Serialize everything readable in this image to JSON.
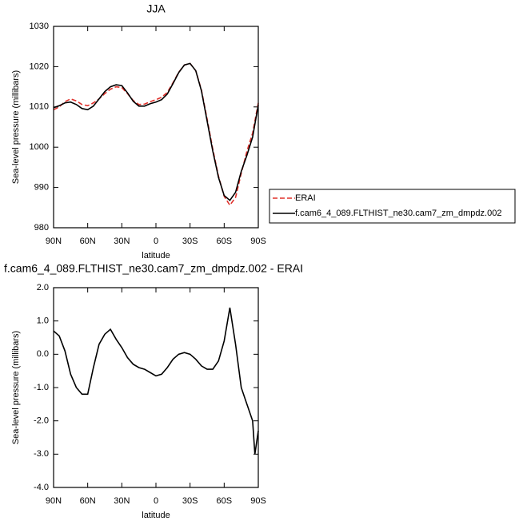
{
  "chart_data": [
    {
      "type": "line",
      "title": "JJA",
      "xlabel": "latitude",
      "ylabel": "Sea-level pressure (millibars)",
      "x": [
        90,
        85,
        80,
        75,
        70,
        65,
        60,
        55,
        50,
        45,
        40,
        35,
        30,
        25,
        20,
        15,
        10,
        5,
        0,
        -5,
        -10,
        -15,
        -20,
        -25,
        -30,
        -35,
        -40,
        -45,
        -50,
        -55,
        -60,
        -65,
        -70,
        -75,
        -80,
        -85,
        -90
      ],
      "xlim": [
        90,
        -90
      ],
      "xticks": [
        {
          "value": 90,
          "label": "90N"
        },
        {
          "value": 60,
          "label": "60N"
        },
        {
          "value": 30,
          "label": "30N"
        },
        0,
        {
          "value": -30,
          "label": "30S"
        },
        {
          "value": -60,
          "label": "60S"
        },
        {
          "value": -90,
          "label": "90S"
        }
      ],
      "ylim": [
        980,
        1030
      ],
      "yticks": [
        980,
        990,
        1000,
        1010,
        1020,
        1030
      ],
      "legend": "right",
      "series": [
        {
          "name": "ERAI",
          "color": "#e0302a",
          "linestyle": "dashed",
          "values": [
            1009.3,
            1010.0,
            1011.3,
            1012.0,
            1011.5,
            1010.6,
            1010.3,
            1011.0,
            1012.0,
            1013.3,
            1014.4,
            1015.0,
            1014.8,
            1013.3,
            1011.6,
            1010.6,
            1010.7,
            1011.3,
            1011.8,
            1012.4,
            1013.6,
            1016.0,
            1018.6,
            1020.4,
            1020.8,
            1019.0,
            1014.2,
            1007.0,
            999.5,
            992.8,
            987.8,
            985.6,
            987.5,
            993.5,
            999.0,
            1003.5,
            1011.0
          ]
        },
        {
          "name": "f.cam6_4_089.FLTHIST_ne30.cam7_zm_dmpdz.002",
          "color": "#000000",
          "linestyle": "solid",
          "values": [
            1009.8,
            1010.3,
            1011.0,
            1011.2,
            1010.6,
            1009.6,
            1009.3,
            1010.2,
            1012.0,
            1013.8,
            1015.0,
            1015.5,
            1015.3,
            1013.5,
            1011.4,
            1010.2,
            1010.2,
            1010.8,
            1011.2,
            1011.8,
            1013.2,
            1015.8,
            1018.5,
            1020.4,
            1020.8,
            1019.0,
            1014.0,
            1006.5,
            999.0,
            992.5,
            988.0,
            986.8,
            988.8,
            994.0,
            998.0,
            1002.5,
            1010.5
          ]
        }
      ]
    },
    {
      "type": "line",
      "title": "f.cam6_4_089.FLTHIST_ne30.cam7_zm_dmpdz.002 - ERAI",
      "xlabel": "latitude",
      "ylabel": "Sea-level pressure (millibars)",
      "x": [
        90,
        85,
        80,
        75,
        70,
        65,
        60,
        55,
        50,
        45,
        40,
        35,
        30,
        25,
        20,
        15,
        10,
        5,
        0,
        -5,
        -10,
        -15,
        -20,
        -25,
        -30,
        -35,
        -40,
        -45,
        -50,
        -55,
        -60,
        -65,
        -70,
        -75,
        -80,
        -85,
        -87,
        -90
      ],
      "xlim": [
        90,
        -90
      ],
      "xticks": [
        {
          "value": 90,
          "label": "90N"
        },
        {
          "value": 60,
          "label": "60N"
        },
        {
          "value": 30,
          "label": "30N"
        },
        0,
        {
          "value": -30,
          "label": "30S"
        },
        {
          "value": -60,
          "label": "60S"
        },
        {
          "value": -90,
          "label": "90S"
        }
      ],
      "ylim": [
        -4,
        2
      ],
      "yticks": [
        {
          "value": -4,
          "label": "-4.0"
        },
        {
          "value": -3,
          "label": "-3.0"
        },
        {
          "value": -2,
          "label": "-2.0"
        },
        {
          "value": -1,
          "label": "-1.0"
        },
        {
          "value": 0,
          "label": "0.0"
        },
        {
          "value": 1,
          "label": "1.0"
        },
        {
          "value": 2,
          "label": "2.0"
        }
      ],
      "series": [
        {
          "color": "#000000",
          "linestyle": "solid",
          "values": [
            0.7,
            0.55,
            0.1,
            -0.6,
            -1.0,
            -1.2,
            -1.2,
            -0.4,
            0.3,
            0.6,
            0.75,
            0.45,
            0.2,
            -0.1,
            -0.3,
            -0.4,
            -0.45,
            -0.55,
            -0.65,
            -0.6,
            -0.4,
            -0.15,
            0.0,
            0.05,
            0.0,
            -0.15,
            -0.35,
            -0.45,
            -0.45,
            -0.2,
            0.4,
            1.4,
            0.3,
            -1.0,
            -1.5,
            -2.0,
            -3.0,
            -2.3
          ]
        }
      ]
    }
  ]
}
